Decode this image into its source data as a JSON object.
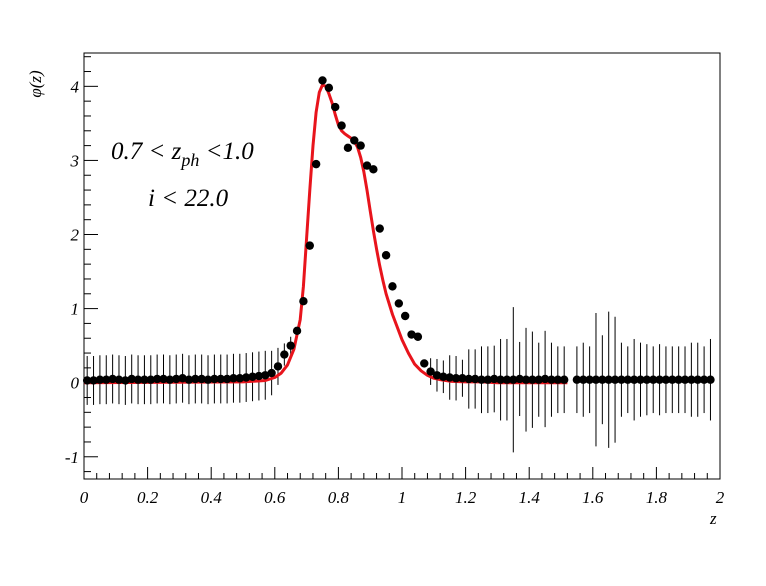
{
  "chart_data": {
    "type": "scatter",
    "title": "",
    "xlabel": "z",
    "ylabel": "φ(z)",
    "xlim": [
      0,
      2
    ],
    "ylim": [
      -1.3,
      4.45
    ],
    "grid": false,
    "legend": "none",
    "x_ticks": [
      0,
      0.2,
      0.4,
      0.6,
      0.8,
      1,
      1.2,
      1.4,
      1.6,
      1.8,
      2
    ],
    "x_tick_labels": [
      "0",
      "0.2",
      "0.4",
      "0.6",
      "0.8",
      "1",
      "1.2",
      "1.4",
      "1.6",
      "1.8",
      "2"
    ],
    "y_ticks": [
      -1,
      0,
      1,
      2,
      3,
      4
    ],
    "y_tick_labels": [
      "-1",
      "0",
      "1",
      "2",
      "3",
      "4"
    ],
    "annotation": {
      "line1_prefix": "0.7 < z",
      "line1_subscript": "ph",
      "line1_suffix": " <1.0",
      "line2": "i < 22.0"
    },
    "colors": {
      "points": "#000000",
      "curve": "#e8141c",
      "axes": "#000000"
    },
    "series": [
      {
        "kind": "points_with_errorbars",
        "x": [
          0.01,
          0.03,
          0.05,
          0.07,
          0.09,
          0.11,
          0.13,
          0.15,
          0.17,
          0.19,
          0.21,
          0.23,
          0.25,
          0.27,
          0.29,
          0.31,
          0.33,
          0.35,
          0.37,
          0.39,
          0.41,
          0.43,
          0.45,
          0.47,
          0.49,
          0.51,
          0.53,
          0.55,
          0.57,
          0.59,
          0.61,
          0.63,
          0.65,
          0.67,
          0.69,
          0.71,
          0.73,
          0.75,
          0.77,
          0.79,
          0.81,
          0.83,
          0.85,
          0.87,
          0.89,
          0.91,
          0.93,
          0.95,
          0.97,
          0.99,
          1.01,
          1.03,
          1.05,
          1.07,
          1.09,
          1.11,
          1.13,
          1.15,
          1.17,
          1.19,
          1.21,
          1.23,
          1.25,
          1.27,
          1.29,
          1.31,
          1.33,
          1.35,
          1.37,
          1.39,
          1.41,
          1.43,
          1.45,
          1.47,
          1.49,
          1.51,
          1.55,
          1.57,
          1.59,
          1.61,
          1.63,
          1.65,
          1.67,
          1.69,
          1.71,
          1.73,
          1.75,
          1.77,
          1.79,
          1.81,
          1.83,
          1.85,
          1.87,
          1.89,
          1.91,
          1.93,
          1.95,
          1.97
        ],
        "y": [
          0.03,
          0.03,
          0.04,
          0.04,
          0.05,
          0.04,
          0.03,
          0.05,
          0.04,
          0.04,
          0.04,
          0.05,
          0.05,
          0.04,
          0.05,
          0.06,
          0.04,
          0.05,
          0.05,
          0.04,
          0.05,
          0.05,
          0.05,
          0.06,
          0.06,
          0.07,
          0.08,
          0.09,
          0.1,
          0.13,
          0.22,
          0.38,
          0.5,
          0.7,
          1.1,
          1.85,
          2.95,
          4.08,
          3.98,
          3.72,
          3.47,
          3.17,
          3.27,
          3.2,
          2.93,
          2.88,
          2.08,
          1.72,
          1.3,
          1.07,
          0.9,
          0.65,
          0.62,
          0.26,
          0.15,
          0.1,
          0.08,
          0.07,
          0.06,
          0.06,
          0.05,
          0.05,
          0.04,
          0.04,
          0.05,
          0.04,
          0.04,
          0.04,
          0.05,
          0.04,
          0.04,
          0.04,
          0.05,
          0.04,
          0.04,
          0.04,
          0.04,
          0.04,
          0.04,
          0.04,
          0.04,
          0.04,
          0.04,
          0.04,
          0.04,
          0.04,
          0.04,
          0.04,
          0.04,
          0.04,
          0.04,
          0.04,
          0.04,
          0.04,
          0.04,
          0.04,
          0.04,
          0.04
        ],
        "yerr": [
          0.33,
          0.33,
          0.33,
          0.33,
          0.33,
          0.33,
          0.33,
          0.33,
          0.33,
          0.33,
          0.33,
          0.33,
          0.33,
          0.33,
          0.33,
          0.33,
          0.33,
          0.33,
          0.33,
          0.33,
          0.33,
          0.33,
          0.33,
          0.33,
          0.33,
          0.33,
          0.33,
          0.33,
          0.33,
          0.3,
          0.25,
          0.15,
          0.12,
          0.05,
          0,
          0,
          0,
          0,
          0,
          0,
          0,
          0,
          0,
          0,
          0,
          0,
          0,
          0,
          0,
          0,
          0,
          0,
          0,
          0,
          0.18,
          0.22,
          0.22,
          0.3,
          0.3,
          0.25,
          0.4,
          0.4,
          0.45,
          0.45,
          0.45,
          0.55,
          0.55,
          0.98,
          0.5,
          0.7,
          0.65,
          0.5,
          0.65,
          0.5,
          0.45,
          0.45,
          0.45,
          0.5,
          0.45,
          0.9,
          0.6,
          0.92,
          0.85,
          0.5,
          0.45,
          0.55,
          0.5,
          0.48,
          0.45,
          0.48,
          0.45,
          0.45,
          0.45,
          0.45,
          0.5,
          0.5,
          0.45,
          0.55
        ]
      },
      {
        "kind": "curve",
        "x": [
          0.0,
          0.5,
          0.57,
          0.6,
          0.62,
          0.64,
          0.66,
          0.68,
          0.69,
          0.7,
          0.71,
          0.72,
          0.73,
          0.74,
          0.75,
          0.76,
          0.77,
          0.78,
          0.79,
          0.8,
          0.81,
          0.82,
          0.83,
          0.84,
          0.85,
          0.86,
          0.87,
          0.88,
          0.89,
          0.9,
          0.91,
          0.92,
          0.93,
          0.94,
          0.95,
          0.97,
          1.0,
          1.02,
          1.04,
          1.06,
          1.08,
          1.1,
          1.12,
          1.15,
          1.2,
          1.25,
          1.3,
          1.5,
          1.52
        ],
        "y": [
          0.0,
          0.01,
          0.03,
          0.07,
          0.13,
          0.24,
          0.45,
          0.85,
          1.3,
          1.95,
          2.6,
          3.2,
          3.65,
          3.92,
          4.02,
          4.0,
          3.9,
          3.78,
          3.62,
          3.48,
          3.4,
          3.36,
          3.33,
          3.3,
          3.26,
          3.18,
          3.04,
          2.85,
          2.6,
          2.32,
          2.05,
          1.8,
          1.58,
          1.38,
          1.2,
          0.92,
          0.58,
          0.4,
          0.25,
          0.16,
          0.1,
          0.06,
          0.04,
          0.02,
          0.01,
          0.01,
          0.0,
          0.0,
          0.0
        ]
      }
    ]
  }
}
